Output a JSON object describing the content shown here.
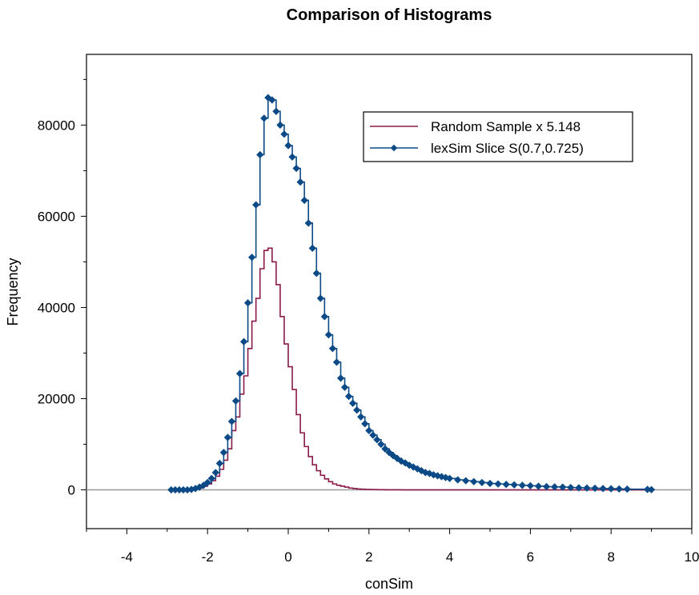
{
  "chart_data": {
    "type": "line",
    "title": "Comparison of Histograms",
    "xlabel": "conSim",
    "ylabel": "Frequency",
    "xlim": [
      -5,
      10
    ],
    "ylim": [
      -8500,
      95500
    ],
    "x_ticks": [
      -4,
      -2,
      0,
      2,
      4,
      6,
      8,
      10
    ],
    "y_ticks": [
      0,
      20000,
      40000,
      60000,
      80000
    ],
    "x_tick_labels": [
      "-4",
      "-2",
      "0",
      "2",
      "4",
      "6",
      "8",
      "10"
    ],
    "y_tick_labels": [
      "0",
      "20000",
      "40000",
      "60000",
      "80000"
    ],
    "zero_line": true,
    "grid": false,
    "legend_position": "top-right",
    "colors": {
      "random": "#8B1A4A",
      "lexsim": "#0B4A86",
      "zero_line": "#999999"
    },
    "series": [
      {
        "name": "Random Sample x 5.148",
        "style": "step",
        "x": [
          -2.9,
          -2.8,
          -2.7,
          -2.6,
          -2.5,
          -2.4,
          -2.3,
          -2.2,
          -2.1,
          -2.0,
          -1.9,
          -1.8,
          -1.7,
          -1.6,
          -1.5,
          -1.4,
          -1.3,
          -1.2,
          -1.1,
          -1.0,
          -0.9,
          -0.8,
          -0.7,
          -0.6,
          -0.5,
          -0.4,
          -0.3,
          -0.2,
          -0.1,
          0.0,
          0.1,
          0.2,
          0.3,
          0.4,
          0.5,
          0.6,
          0.7,
          0.8,
          0.9,
          1.0,
          1.1,
          1.2,
          1.3,
          1.4,
          1.5,
          1.6,
          1.7,
          1.8,
          1.9,
          2.0,
          2.1,
          2.2,
          2.3,
          2.4,
          2.5,
          2.6,
          2.8,
          3.0,
          3.2,
          3.4,
          3.6,
          3.8,
          4.0,
          4.5,
          5.0,
          6.0,
          7.0,
          8.0,
          9.0
        ],
        "values": [
          0,
          0,
          0,
          0,
          0,
          100,
          200,
          400,
          800,
          1300,
          2000,
          3000,
          4500,
          6500,
          9000,
          13000,
          16000,
          21000,
          25000,
          31000,
          37000,
          42000,
          48500,
          52500,
          53000,
          50000,
          45000,
          38000,
          32000,
          27000,
          22000,
          16500,
          12500,
          9500,
          7300,
          5500,
          4200,
          3200,
          2400,
          1800,
          1300,
          1000,
          800,
          600,
          400,
          300,
          200,
          150,
          100,
          80,
          60,
          40,
          30,
          20,
          10,
          10,
          0,
          0,
          0,
          0,
          0,
          0,
          0,
          0,
          0,
          0,
          0,
          0,
          0
        ]
      },
      {
        "name": "lexSim Slice S(0.7,0.725)",
        "style": "step-markers",
        "x": [
          -2.9,
          -2.8,
          -2.7,
          -2.6,
          -2.5,
          -2.4,
          -2.3,
          -2.2,
          -2.1,
          -2.0,
          -1.9,
          -1.8,
          -1.7,
          -1.6,
          -1.5,
          -1.4,
          -1.3,
          -1.2,
          -1.1,
          -1.0,
          -0.9,
          -0.8,
          -0.7,
          -0.6,
          -0.5,
          -0.4,
          -0.3,
          -0.2,
          -0.1,
          0.0,
          0.1,
          0.2,
          0.3,
          0.4,
          0.5,
          0.6,
          0.7,
          0.8,
          0.9,
          1.0,
          1.1,
          1.2,
          1.3,
          1.4,
          1.5,
          1.6,
          1.7,
          1.8,
          1.9,
          2.0,
          2.1,
          2.2,
          2.3,
          2.4,
          2.5,
          2.6,
          2.7,
          2.8,
          2.9,
          3.0,
          3.1,
          3.2,
          3.3,
          3.4,
          3.5,
          3.6,
          3.7,
          3.8,
          3.9,
          4.0,
          4.2,
          4.4,
          4.6,
          4.8,
          5.0,
          5.2,
          5.4,
          5.6,
          5.8,
          6.0,
          6.2,
          6.4,
          6.6,
          6.8,
          7.0,
          7.2,
          7.4,
          7.6,
          7.8,
          8.0,
          8.2,
          8.4,
          8.9,
          9.0
        ],
        "values": [
          0,
          0,
          0,
          0,
          0,
          100,
          300,
          600,
          1000,
          1600,
          2500,
          3800,
          5800,
          8200,
          11500,
          15000,
          19500,
          25500,
          32500,
          41000,
          51000,
          62500,
          73500,
          81500,
          86000,
          85500,
          83000,
          80000,
          78000,
          75500,
          73000,
          70500,
          67500,
          63500,
          58500,
          53000,
          47500,
          42000,
          38000,
          34000,
          31000,
          28000,
          24500,
          22500,
          20500,
          19000,
          17500,
          16000,
          14500,
          13000,
          12000,
          11000,
          10000,
          9000,
          8200,
          7500,
          6900,
          6300,
          5900,
          5400,
          5000,
          4600,
          4200,
          3800,
          3600,
          3300,
          3100,
          2900,
          2700,
          2500,
          2200,
          2000,
          1800,
          1600,
          1400,
          1300,
          1200,
          1100,
          1000,
          900,
          800,
          700,
          650,
          600,
          500,
          450,
          400,
          350,
          300,
          250,
          200,
          150,
          100,
          50
        ]
      }
    ]
  }
}
